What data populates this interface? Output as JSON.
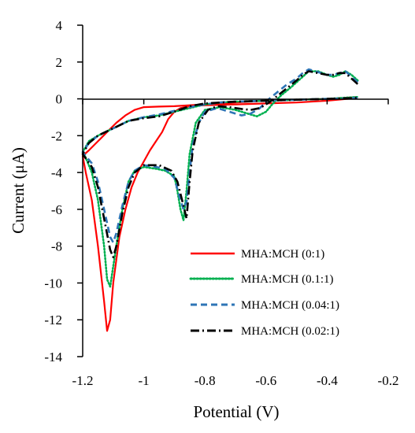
{
  "chart_data": {
    "type": "line",
    "title": "",
    "xlabel": "Potential (V)",
    "ylabel": "Current (μA)",
    "xlim": [
      -1.2,
      -0.2
    ],
    "ylim": [
      -14,
      4
    ],
    "xticks": [
      "-1.2",
      "-1",
      "-0.8",
      "-0.6",
      "-0.4",
      "-0.2"
    ],
    "yticks": [
      "4",
      "2",
      "0",
      "-2",
      "-4",
      "-6",
      "-8",
      "-10",
      "-12",
      "-14"
    ],
    "grid": false,
    "legend_position": "bottom-right",
    "series": [
      {
        "name": "MHA:MCH (0:1)",
        "color": "#ff0000",
        "style": "solid",
        "points": [
          [
            -0.3,
            0.1
          ],
          [
            -0.4,
            0.0
          ],
          [
            -0.5,
            -0.05
          ],
          [
            -0.6,
            -0.1
          ],
          [
            -0.7,
            -0.2
          ],
          [
            -0.8,
            -0.3
          ],
          [
            -0.85,
            -0.35
          ],
          [
            -0.9,
            -0.4
          ],
          [
            -0.95,
            -0.42
          ],
          [
            -1.0,
            -0.45
          ],
          [
            -1.03,
            -0.6
          ],
          [
            -1.06,
            -0.9
          ],
          [
            -1.09,
            -1.3
          ],
          [
            -1.12,
            -1.8
          ],
          [
            -1.15,
            -2.3
          ],
          [
            -1.18,
            -2.8
          ],
          [
            -1.2,
            -3.1
          ],
          [
            -1.19,
            -4.0
          ],
          [
            -1.17,
            -5.5
          ],
          [
            -1.15,
            -8.0
          ],
          [
            -1.13,
            -11.0
          ],
          [
            -1.12,
            -12.6
          ],
          [
            -1.11,
            -12.0
          ],
          [
            -1.1,
            -10.0
          ],
          [
            -1.08,
            -7.5
          ],
          [
            -1.06,
            -6.0
          ],
          [
            -1.04,
            -4.8
          ],
          [
            -1.02,
            -4.0
          ],
          [
            -1.0,
            -3.4
          ],
          [
            -0.98,
            -2.8
          ],
          [
            -0.96,
            -2.3
          ],
          [
            -0.94,
            -1.8
          ],
          [
            -0.92,
            -1.1
          ],
          [
            -0.9,
            -0.7
          ],
          [
            -0.88,
            -0.5
          ],
          [
            -0.85,
            -0.4
          ],
          [
            -0.8,
            -0.35
          ],
          [
            -0.7,
            -0.3
          ],
          [
            -0.6,
            -0.25
          ],
          [
            -0.5,
            -0.2
          ],
          [
            -0.4,
            -0.1
          ],
          [
            -0.3,
            0.05
          ]
        ]
      },
      {
        "name": "MHA:MCH (0.1:1)",
        "color": "#00b050",
        "style": "dotted",
        "points": [
          [
            -0.3,
            1.0
          ],
          [
            -0.32,
            1.3
          ],
          [
            -0.34,
            1.5
          ],
          [
            -0.36,
            1.3
          ],
          [
            -0.38,
            1.2
          ],
          [
            -0.4,
            1.3
          ],
          [
            -0.43,
            1.5
          ],
          [
            -0.46,
            1.5
          ],
          [
            -0.48,
            1.2
          ],
          [
            -0.5,
            0.9
          ],
          [
            -0.52,
            0.6
          ],
          [
            -0.55,
            0.2
          ],
          [
            -0.58,
            -0.3
          ],
          [
            -0.6,
            -0.7
          ],
          [
            -0.63,
            -0.95
          ],
          [
            -0.66,
            -0.8
          ],
          [
            -0.7,
            -0.6
          ],
          [
            -0.75,
            -0.45
          ],
          [
            -0.8,
            -0.6
          ],
          [
            -0.83,
            -1.3
          ],
          [
            -0.85,
            -3.0
          ],
          [
            -0.86,
            -5.0
          ],
          [
            -0.87,
            -6.6
          ],
          [
            -0.88,
            -6.0
          ],
          [
            -0.89,
            -5.0
          ],
          [
            -0.9,
            -4.2
          ],
          [
            -0.93,
            -3.9
          ],
          [
            -0.96,
            -3.8
          ],
          [
            -1.0,
            -3.7
          ],
          [
            -1.03,
            -3.9
          ],
          [
            -1.05,
            -4.5
          ],
          [
            -1.07,
            -6.0
          ],
          [
            -1.09,
            -8.0
          ],
          [
            -1.11,
            -10.2
          ],
          [
            -1.12,
            -9.8
          ],
          [
            -1.13,
            -8.0
          ],
          [
            -1.15,
            -5.5
          ],
          [
            -1.17,
            -4.0
          ],
          [
            -1.19,
            -3.2
          ],
          [
            -1.2,
            -2.9
          ],
          [
            -1.18,
            -2.3
          ],
          [
            -1.15,
            -2.0
          ],
          [
            -1.1,
            -1.6
          ],
          [
            -1.05,
            -1.2
          ],
          [
            -1.0,
            -1.0
          ],
          [
            -0.95,
            -0.9
          ],
          [
            -0.9,
            -0.7
          ],
          [
            -0.85,
            -0.5
          ],
          [
            -0.8,
            -0.3
          ],
          [
            -0.75,
            -0.2
          ],
          [
            -0.7,
            -0.15
          ],
          [
            -0.6,
            -0.1
          ],
          [
            -0.5,
            -0.05
          ],
          [
            -0.4,
            0.0
          ],
          [
            -0.3,
            0.1
          ]
        ]
      },
      {
        "name": "MHA:MCH (0.04:1)",
        "color": "#2e75b6",
        "style": "dashed",
        "points": [
          [
            -0.3,
            0.9
          ],
          [
            -0.32,
            1.2
          ],
          [
            -0.34,
            1.5
          ],
          [
            -0.36,
            1.4
          ],
          [
            -0.38,
            1.3
          ],
          [
            -0.4,
            1.3
          ],
          [
            -0.43,
            1.45
          ],
          [
            -0.46,
            1.6
          ],
          [
            -0.48,
            1.4
          ],
          [
            -0.5,
            1.1
          ],
          [
            -0.53,
            0.8
          ],
          [
            -0.56,
            0.4
          ],
          [
            -0.59,
            0.0
          ],
          [
            -0.62,
            -0.5
          ],
          [
            -0.65,
            -0.8
          ],
          [
            -0.68,
            -0.9
          ],
          [
            -0.72,
            -0.7
          ],
          [
            -0.76,
            -0.5
          ],
          [
            -0.8,
            -0.7
          ],
          [
            -0.82,
            -1.3
          ],
          [
            -0.84,
            -2.5
          ],
          [
            -0.85,
            -4.0
          ],
          [
            -0.86,
            -5.6
          ],
          [
            -0.87,
            -6.0
          ],
          [
            -0.88,
            -5.5
          ],
          [
            -0.9,
            -4.3
          ],
          [
            -0.93,
            -3.8
          ],
          [
            -0.96,
            -3.7
          ],
          [
            -1.0,
            -3.6
          ],
          [
            -1.03,
            -3.9
          ],
          [
            -1.05,
            -4.5
          ],
          [
            -1.07,
            -5.8
          ],
          [
            -1.09,
            -7.3
          ],
          [
            -1.1,
            -7.8
          ],
          [
            -1.11,
            -7.5
          ],
          [
            -1.13,
            -6.0
          ],
          [
            -1.15,
            -4.5
          ],
          [
            -1.17,
            -3.5
          ],
          [
            -1.2,
            -2.9
          ],
          [
            -1.18,
            -2.4
          ],
          [
            -1.15,
            -2.0
          ],
          [
            -1.1,
            -1.6
          ],
          [
            -1.05,
            -1.2
          ],
          [
            -1.0,
            -1.0
          ],
          [
            -0.95,
            -0.85
          ],
          [
            -0.9,
            -0.65
          ],
          [
            -0.85,
            -0.45
          ],
          [
            -0.8,
            -0.3
          ],
          [
            -0.75,
            -0.2
          ],
          [
            -0.7,
            -0.15
          ],
          [
            -0.6,
            -0.1
          ],
          [
            -0.5,
            -0.05
          ],
          [
            -0.4,
            0.0
          ],
          [
            -0.3,
            0.05
          ]
        ]
      },
      {
        "name": "MHA:MCH (0.02:1)",
        "color": "#000000",
        "style": "dashdot",
        "points": [
          [
            -0.3,
            0.8
          ],
          [
            -0.32,
            1.1
          ],
          [
            -0.34,
            1.4
          ],
          [
            -0.36,
            1.4
          ],
          [
            -0.38,
            1.3
          ],
          [
            -0.4,
            1.3
          ],
          [
            -0.43,
            1.4
          ],
          [
            -0.46,
            1.5
          ],
          [
            -0.48,
            1.3
          ],
          [
            -0.5,
            1.0
          ],
          [
            -0.53,
            0.6
          ],
          [
            -0.56,
            0.2
          ],
          [
            -0.59,
            -0.2
          ],
          [
            -0.62,
            -0.5
          ],
          [
            -0.65,
            -0.6
          ],
          [
            -0.68,
            -0.55
          ],
          [
            -0.72,
            -0.45
          ],
          [
            -0.76,
            -0.4
          ],
          [
            -0.79,
            -0.6
          ],
          [
            -0.82,
            -1.3
          ],
          [
            -0.84,
            -2.8
          ],
          [
            -0.85,
            -4.5
          ],
          [
            -0.86,
            -6.5
          ],
          [
            -0.87,
            -5.8
          ],
          [
            -0.89,
            -4.5
          ],
          [
            -0.91,
            -3.9
          ],
          [
            -0.95,
            -3.6
          ],
          [
            -1.0,
            -3.6
          ],
          [
            -1.03,
            -4.0
          ],
          [
            -1.05,
            -4.8
          ],
          [
            -1.07,
            -6.2
          ],
          [
            -1.09,
            -8.0
          ],
          [
            -1.1,
            -8.6
          ],
          [
            -1.11,
            -8.2
          ],
          [
            -1.13,
            -6.5
          ],
          [
            -1.15,
            -4.8
          ],
          [
            -1.17,
            -3.7
          ],
          [
            -1.2,
            -3.0
          ],
          [
            -1.18,
            -2.4
          ],
          [
            -1.15,
            -2.0
          ],
          [
            -1.1,
            -1.6
          ],
          [
            -1.05,
            -1.2
          ],
          [
            -1.0,
            -1.05
          ],
          [
            -0.95,
            -0.95
          ],
          [
            -0.9,
            -0.7
          ],
          [
            -0.85,
            -0.4
          ],
          [
            -0.8,
            -0.25
          ],
          [
            -0.75,
            -0.2
          ],
          [
            -0.7,
            -0.15
          ],
          [
            -0.6,
            -0.1
          ],
          [
            -0.5,
            -0.05
          ],
          [
            -0.4,
            0.0
          ],
          [
            -0.3,
            0.05
          ]
        ]
      }
    ]
  }
}
